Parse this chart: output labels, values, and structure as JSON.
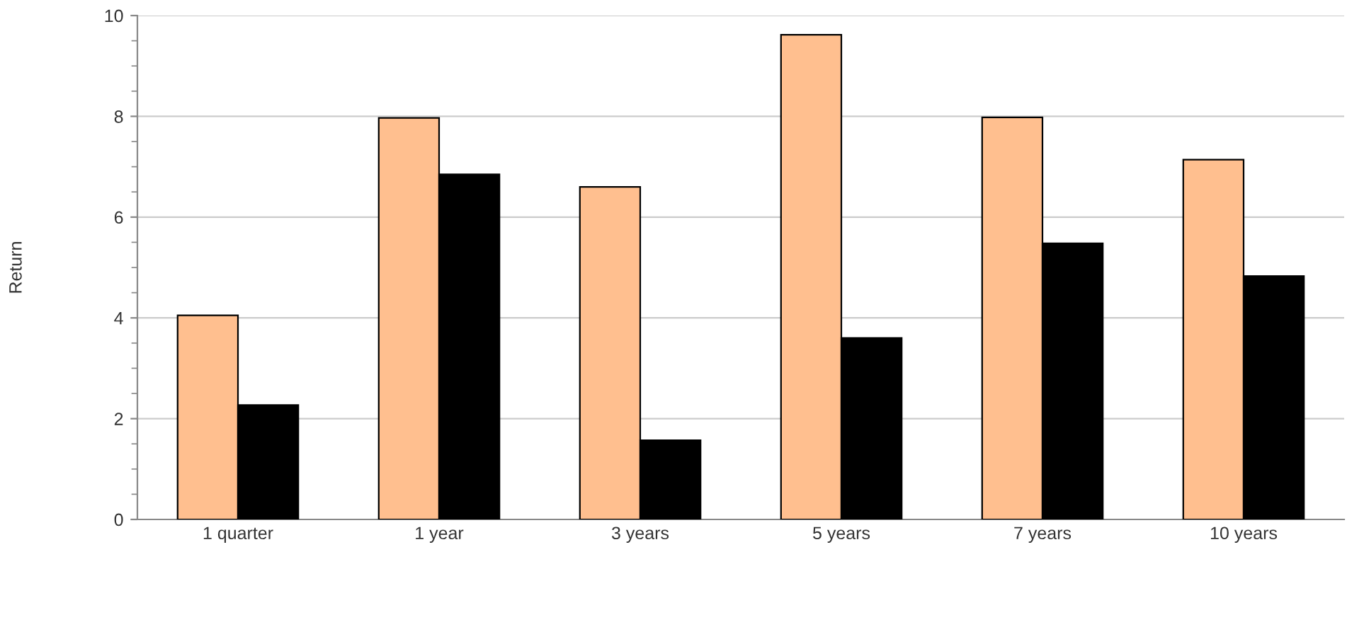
{
  "chart_data": {
    "type": "bar",
    "ylabel": "Return",
    "categories": [
      "1 quarter",
      "1 year",
      "3 years",
      "5 years",
      "7 years",
      "10 years"
    ],
    "series": [
      {
        "color": "#ffbf8f",
        "values": [
          4.05,
          7.97,
          6.6,
          9.62,
          7.98,
          7.14
        ]
      },
      {
        "color": "#000000",
        "values": [
          2.27,
          6.85,
          1.57,
          3.6,
          5.48,
          4.83
        ]
      }
    ],
    "ylim": [
      0,
      10
    ],
    "yticks": [
      0,
      2,
      4,
      6,
      8,
      10
    ],
    "grid": "y"
  }
}
